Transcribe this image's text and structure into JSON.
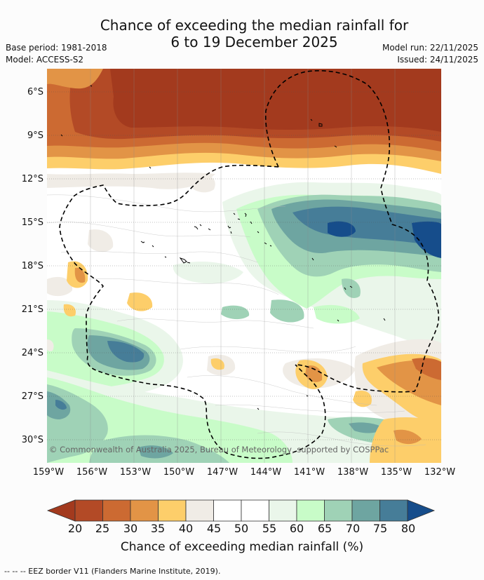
{
  "title": {
    "line1": "Chance of exceeding the median rainfall for",
    "line2": "6 to 19 December 2025"
  },
  "meta": {
    "base_period": "Base period: 1981-2018",
    "model": "Model: ACCESS-S2",
    "model_run": "Model run: 22/11/2025",
    "issued": "Issued: 24/11/2025"
  },
  "map": {
    "x_ticks": [
      "159°W",
      "156°W",
      "153°W",
      "150°W",
      "147°W",
      "144°W",
      "141°W",
      "138°W",
      "135°W",
      "132°W"
    ],
    "y_ticks": [
      "6°S",
      "9°S",
      "12°S",
      "15°S",
      "18°S",
      "21°S",
      "24°S",
      "27°S",
      "30°S"
    ],
    "copyright": "© Commonwealth of Australia 2025, Bureau of Meteorology, supported by COSPPac"
  },
  "colorbar": {
    "labels": [
      "20",
      "25",
      "30",
      "35",
      "40",
      "45",
      "50",
      "55",
      "60",
      "65",
      "70",
      "75",
      "80"
    ],
    "colors": [
      "#a33a1e",
      "#b34a26",
      "#cc6a32",
      "#e29446",
      "#fdce6a",
      "#f0ece6",
      "#ffffff",
      "#ffffff",
      "#eaf6ea",
      "#c8fcc8",
      "#9fd2b6",
      "#6ea5a1",
      "#467d98",
      "#164d8b"
    ],
    "title": "Chance of exceeding median rainfall (%)"
  },
  "footer": "--  --  -- EEZ border V11 (Flanders Marine Institute, 2019)."
}
